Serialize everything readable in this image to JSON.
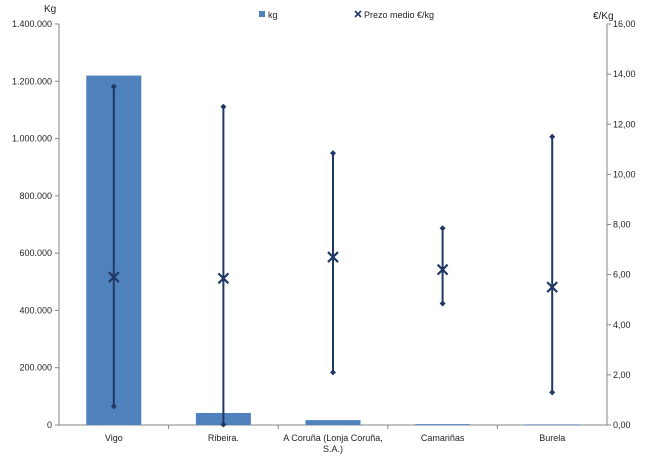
{
  "chart_data": {
    "type": "bar",
    "categories": [
      "Vigo",
      "Ribeira.",
      "A Coruña (Lonja Coruña, S.A.)",
      "Camariñas",
      "Burela"
    ],
    "category_labels": [
      [
        "Vigo"
      ],
      [
        "Ribeira."
      ],
      [
        "A Coruña (Lonja Coruña,",
        "S.A.)"
      ],
      [
        "Camariñas"
      ],
      [
        "Burela"
      ]
    ],
    "series": [
      {
        "name": "kg",
        "axis": "left",
        "color": "#4f81bd",
        "values": [
          1220000,
          42000,
          17000,
          3000,
          2000
        ]
      },
      {
        "name": "Prezo medio €/kg",
        "axis": "right",
        "color": "#1f3864",
        "type": "stock",
        "avg": [
          5.9,
          5.85,
          6.7,
          6.2,
          5.5
        ],
        "max": [
          13.5,
          12.7,
          10.85,
          7.85,
          11.5
        ],
        "min": [
          0.75,
          0.02,
          2.1,
          4.85,
          1.3
        ]
      }
    ],
    "ylabel": "Kg",
    "y2label": "€/Kg",
    "ylim": [
      0,
      1400000
    ],
    "y2lim": [
      0,
      16
    ],
    "yticks": [
      "0",
      "200.000",
      "400.000",
      "600.000",
      "800.000",
      "1.000.000",
      "1.200.000",
      "1.400.000"
    ],
    "y2ticks": [
      "0,00",
      "2,00",
      "4,00",
      "6,00",
      "8,00",
      "10,00",
      "12,00",
      "14,00",
      "16,00"
    ],
    "legend": "top-center",
    "grid": false
  }
}
